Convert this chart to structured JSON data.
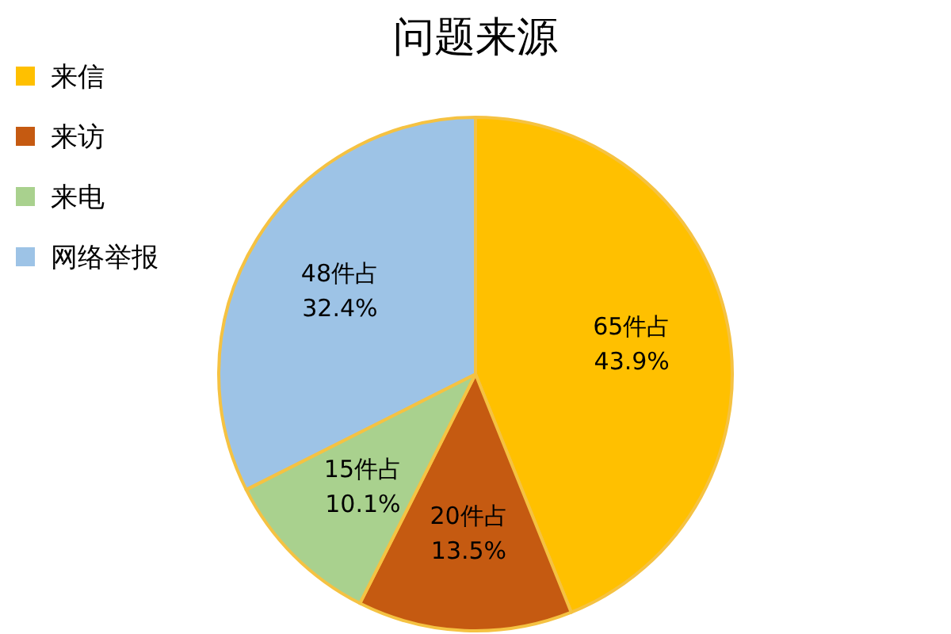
{
  "chart_data": {
    "type": "pie",
    "title": "问题来源",
    "categories": [
      "来信",
      "来访",
      "来电",
      "网络举报"
    ],
    "values": [
      65,
      20,
      15,
      48
    ],
    "colors": [
      "#ffc000",
      "#c55a11",
      "#a9d18e",
      "#9dc3e6"
    ],
    "value_labels": [
      "65件占 43.9%",
      "20件占 13.5%",
      "15件占 10.1%",
      "48件占 32.4%"
    ],
    "legend": "top left"
  }
}
